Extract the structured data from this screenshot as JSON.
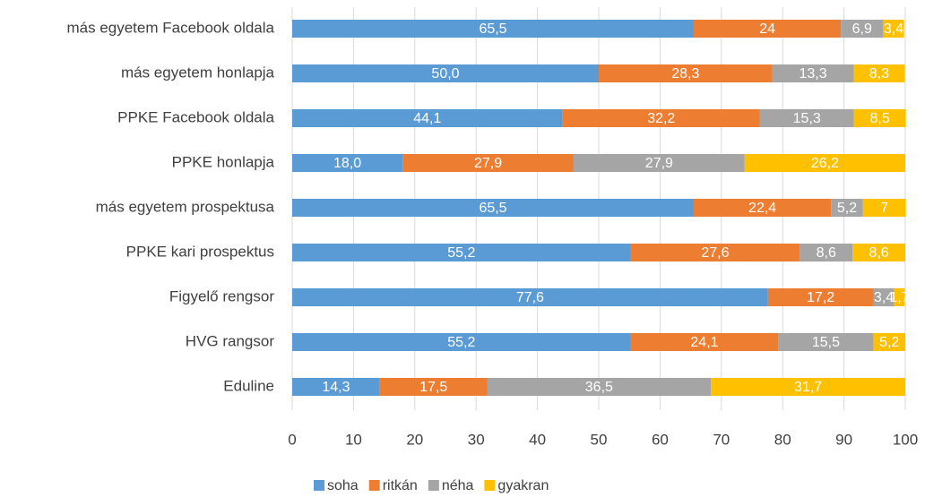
{
  "chart_data": {
    "type": "stacked-bar-horizontal",
    "categories": [
      "más egyetem Facebook oldala",
      "más egyetem honlapja",
      "PPKE Facebook oldala",
      "PPKE honlapja",
      "más egyetem prospektusa",
      "PPKE kari prospektus",
      "Figyelő rengsor",
      "HVG rangsor",
      "Eduline"
    ],
    "series": [
      {
        "name": "soha",
        "color": "#5b9bd5",
        "values": [
          65.5,
          50.0,
          44.1,
          18.0,
          65.5,
          55.2,
          77.6,
          55.2,
          14.3
        ],
        "value_labels": [
          "65,5",
          "50,0",
          "44,1",
          "18,0",
          "65,5",
          "55,2",
          "77,6",
          "55,2",
          "14,3"
        ]
      },
      {
        "name": "ritkán",
        "color": "#ed7d31",
        "values": [
          24,
          28.3,
          32.2,
          27.9,
          22.4,
          27.6,
          17.2,
          24.1,
          17.5
        ],
        "value_labels": [
          "24",
          "28,3",
          "32,2",
          "27,9",
          "22,4",
          "27,6",
          "17,2",
          "24,1",
          "17,5"
        ]
      },
      {
        "name": "néha",
        "color": "#a5a5a5",
        "values": [
          6.9,
          13.3,
          15.3,
          27.9,
          5.2,
          8.6,
          3.4,
          15.5,
          36.5
        ],
        "value_labels": [
          "6,9",
          "13,3",
          "15,3",
          "27,9",
          "5,2",
          "8,6",
          "3,4",
          "15,5",
          "36,5"
        ]
      },
      {
        "name": "gyakran",
        "color": "#ffc000",
        "values": [
          3.4,
          8.3,
          8.5,
          26.2,
          7,
          8.6,
          1.7,
          5.2,
          31.7
        ],
        "value_labels": [
          "3,4",
          "8,3",
          "8,5",
          "26,2",
          "7",
          "8,6",
          "1,7",
          "5,2",
          "31,7"
        ]
      }
    ],
    "xlim": [
      0,
      100
    ],
    "xticks": [
      0,
      10,
      20,
      30,
      40,
      50,
      60,
      70,
      80,
      90,
      100
    ],
    "grid": true,
    "legend": "bottom"
  }
}
